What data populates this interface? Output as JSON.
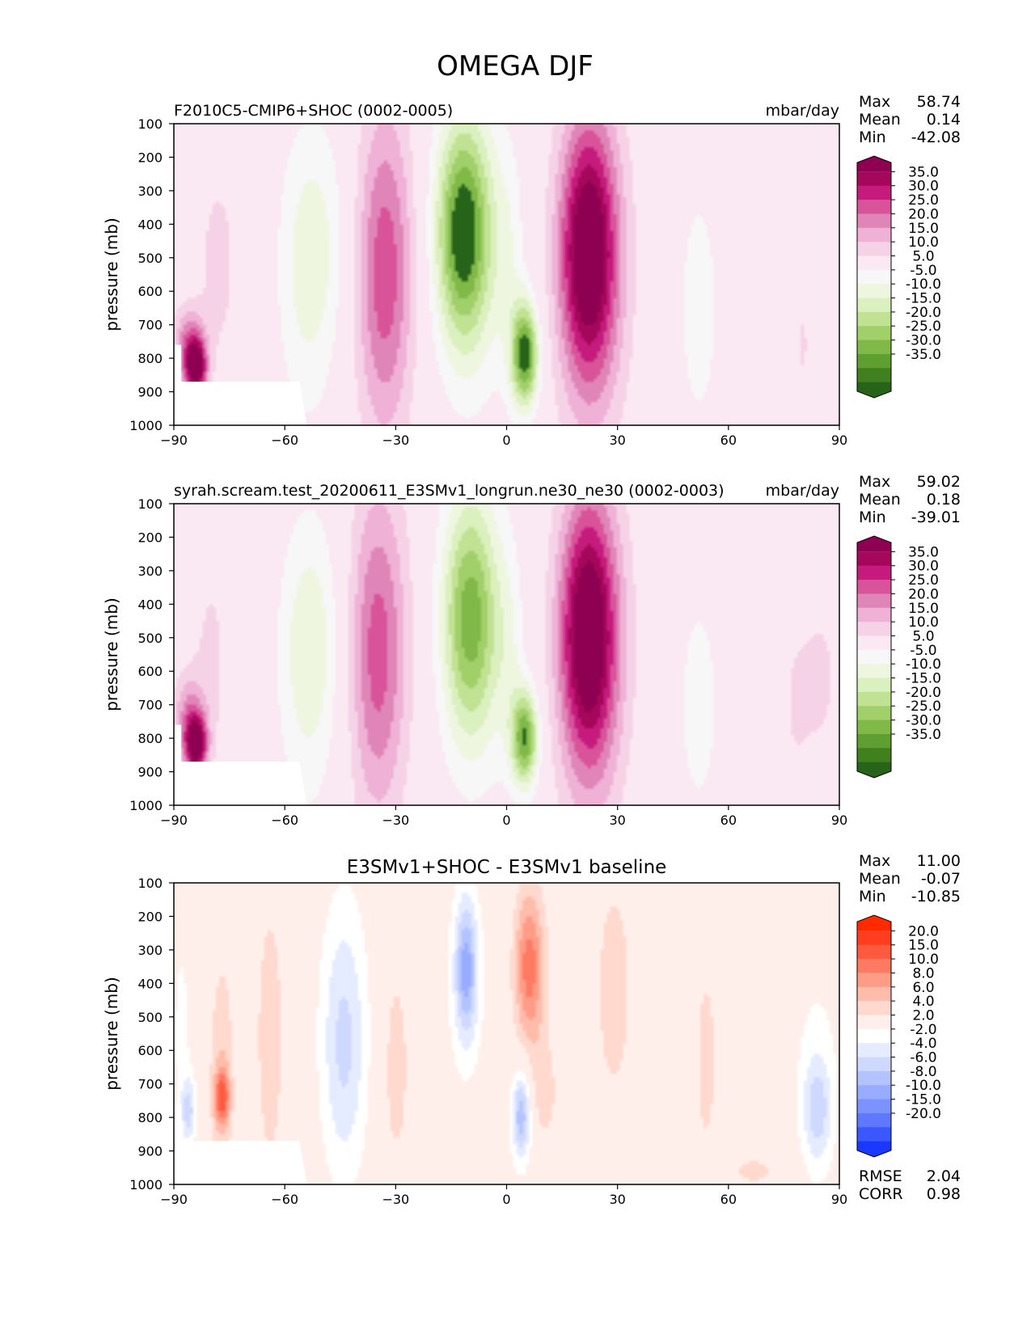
{
  "figure": {
    "title": "OMEGA DJF"
  },
  "chart_data": [
    {
      "type": "heatmap",
      "name": "test",
      "title": "F2010C5-CMIP6+SHOC (0002-0005)",
      "units": "mbar/day",
      "ylabel": "pressure (mb)",
      "xticks": [
        "−90",
        "−60",
        "−30",
        "0",
        "30",
        "60",
        "90"
      ],
      "yticks": [
        "100",
        "200",
        "300",
        "400",
        "500",
        "600",
        "700",
        "800",
        "900",
        "1000"
      ],
      "xlim": [
        -90,
        90
      ],
      "ylim": [
        100,
        1000
      ],
      "stats": {
        "max_label": "Max",
        "max": "58.74",
        "mean_label": "Mean",
        "mean": "0.14",
        "min_label": "Min",
        "min": "-42.08"
      },
      "colorbar": {
        "labels": [
          "35.0",
          "30.0",
          "25.0",
          "20.0",
          "15.0",
          "10.0",
          "5.0",
          "-5.0",
          "-10.0",
          "-15.0",
          "-20.0",
          "-25.0",
          "-30.0",
          "-35.0"
        ],
        "colors": [
          "#8e0152",
          "#a5075b",
          "#c51b7d",
          "#d9539a",
          "#e085b8",
          "#efb1d5",
          "#f6d2e7",
          "#fae9f2",
          "#f7f7f7",
          "#eff6df",
          "#dbf0bf",
          "#c1e293",
          "#a1cf6a",
          "#80b948",
          "#5f9e30",
          "#40801e",
          "#276419"
        ]
      },
      "features": [
        {
          "lat": -84,
          "p": 830,
          "w": 2,
          "h": 60,
          "v": 38
        },
        {
          "lat": -86,
          "p": 760,
          "w": 3,
          "h": 80,
          "v": 18
        },
        {
          "lat": -78,
          "p": 520,
          "w": 4,
          "h": 230,
          "v": 7
        },
        {
          "lat": -54,
          "p": 580,
          "w": 6,
          "h": 320,
          "v": -9
        },
        {
          "lat": -50,
          "p": 420,
          "w": 7,
          "h": 260,
          "v": -6
        },
        {
          "lat": -33,
          "p": 560,
          "w": 5,
          "h": 330,
          "v": 16
        },
        {
          "lat": -33,
          "p": 500,
          "w": 7,
          "h": 380,
          "v": 8
        },
        {
          "lat": -12,
          "p": 420,
          "w": 5,
          "h": 220,
          "v": -28
        },
        {
          "lat": -10,
          "p": 450,
          "w": 7,
          "h": 330,
          "v": -14
        },
        {
          "lat": 5,
          "p": 790,
          "w": 2.6,
          "h": 110,
          "v": -38
        },
        {
          "lat": 1,
          "p": 520,
          "w": 3,
          "h": 260,
          "v": -6
        },
        {
          "lat": 22,
          "p": 480,
          "w": 5,
          "h": 250,
          "v": 30
        },
        {
          "lat": 23,
          "p": 520,
          "w": 7,
          "h": 380,
          "v": 17
        },
        {
          "lat": 52,
          "p": 650,
          "w": 5,
          "h": 340,
          "v": -7
        },
        {
          "lat": 80,
          "p": 760,
          "w": 1.5,
          "h": 100,
          "v": 6
        }
      ]
    },
    {
      "type": "heatmap",
      "name": "reference",
      "title": "syrah.scream.test_20200611_E3SMv1_longrun.ne30_ne30 (0002-0003)",
      "units": "mbar/day",
      "ylabel": "pressure (mb)",
      "xticks": [
        "−90",
        "−60",
        "−30",
        "0",
        "30",
        "60",
        "90"
      ],
      "yticks": [
        "100",
        "200",
        "300",
        "400",
        "500",
        "600",
        "700",
        "800",
        "900",
        "1000"
      ],
      "xlim": [
        -90,
        90
      ],
      "ylim": [
        100,
        1000
      ],
      "stats": {
        "max_label": "Max",
        "max": "59.02",
        "mean_label": "Mean",
        "mean": "0.18",
        "min_label": "Min",
        "min": "-39.01"
      },
      "colorbar": {
        "labels": [
          "35.0",
          "30.0",
          "25.0",
          "20.0",
          "15.0",
          "10.0",
          "5.0",
          "-5.0",
          "-10.0",
          "-15.0",
          "-20.0",
          "-25.0",
          "-30.0",
          "-35.0"
        ],
        "colors": [
          "#8e0152",
          "#a5075b",
          "#c51b7d",
          "#d9539a",
          "#e085b8",
          "#efb1d5",
          "#f6d2e7",
          "#fae9f2",
          "#f7f7f7",
          "#eff6df",
          "#dbf0bf",
          "#c1e293",
          "#a1cf6a",
          "#80b948",
          "#5f9e30",
          "#40801e",
          "#276419"
        ]
      },
      "features": [
        {
          "lat": -84,
          "p": 820,
          "w": 2,
          "h": 60,
          "v": 38
        },
        {
          "lat": -86,
          "p": 740,
          "w": 3,
          "h": 90,
          "v": 16
        },
        {
          "lat": -80,
          "p": 560,
          "w": 4,
          "h": 260,
          "v": 6
        },
        {
          "lat": -54,
          "p": 600,
          "w": 6,
          "h": 330,
          "v": -9
        },
        {
          "lat": -52,
          "p": 480,
          "w": 6,
          "h": 250,
          "v": -6
        },
        {
          "lat": -35,
          "p": 560,
          "w": 5,
          "h": 330,
          "v": 15
        },
        {
          "lat": -34,
          "p": 500,
          "w": 7,
          "h": 380,
          "v": 8
        },
        {
          "lat": -10,
          "p": 440,
          "w": 5,
          "h": 240,
          "v": -22
        },
        {
          "lat": -9,
          "p": 460,
          "w": 7,
          "h": 330,
          "v": -12
        },
        {
          "lat": 5,
          "p": 800,
          "w": 2.6,
          "h": 100,
          "v": -34
        },
        {
          "lat": 1,
          "p": 560,
          "w": 3,
          "h": 240,
          "v": -6
        },
        {
          "lat": 22,
          "p": 490,
          "w": 5,
          "h": 260,
          "v": 30
        },
        {
          "lat": 23,
          "p": 520,
          "w": 7,
          "h": 380,
          "v": 17
        },
        {
          "lat": 52,
          "p": 700,
          "w": 5,
          "h": 300,
          "v": -7
        },
        {
          "lat": 85,
          "p": 620,
          "w": 4,
          "h": 200,
          "v": 6
        },
        {
          "lat": 78,
          "p": 700,
          "w": 3,
          "h": 180,
          "v": 5
        }
      ]
    },
    {
      "type": "heatmap",
      "name": "diff",
      "title": "E3SMv1+SHOC - E3SMv1 baseline",
      "units": "",
      "ylabel": "pressure (mb)",
      "xticks": [
        "−90",
        "−60",
        "−30",
        "0",
        "30",
        "60",
        "90"
      ],
      "yticks": [
        "100",
        "200",
        "300",
        "400",
        "500",
        "600",
        "700",
        "800",
        "900",
        "1000"
      ],
      "xlim": [
        -90,
        90
      ],
      "ylim": [
        100,
        1000
      ],
      "stats": {
        "max_label": "Max",
        "max": "11.00",
        "mean_label": "Mean",
        "mean": "-0.07",
        "min_label": "Min",
        "min": "-10.85"
      },
      "metrics": {
        "rmse_label": "RMSE",
        "rmse": "2.04",
        "corr_label": "CORR",
        "corr": "0.98"
      },
      "colorbar": {
        "labels": [
          "20.0",
          "15.0",
          "10.0",
          "8.0",
          "6.0",
          "4.0",
          "2.0",
          "-2.0",
          "-4.0",
          "-6.0",
          "-8.0",
          "-10.0",
          "-15.0",
          "-20.0"
        ],
        "colors": [
          "#ff2a00",
          "#ff3d1f",
          "#ff5940",
          "#ff7a63",
          "#ff9c87",
          "#ffbcab",
          "#ffd9ce",
          "#ffefea",
          "#ffffff",
          "#e6ecff",
          "#cfd9ff",
          "#b3c3ff",
          "#97abff",
          "#7b92ff",
          "#5f78ff",
          "#3b57ff",
          "#1a38ff"
        ]
      },
      "features": [
        {
          "lat": -77,
          "p": 740,
          "w": 1.4,
          "h": 60,
          "v": 9
        },
        {
          "lat": -77,
          "p": 650,
          "w": 2.5,
          "h": 260,
          "v": 3.5
        },
        {
          "lat": -64,
          "p": 560,
          "w": 3,
          "h": 330,
          "v": 3.2
        },
        {
          "lat": -86,
          "p": 780,
          "w": 1.4,
          "h": 70,
          "v": -6
        },
        {
          "lat": -88,
          "p": 550,
          "w": 2.5,
          "h": 300,
          "v": -2.5
        },
        {
          "lat": -44,
          "p": 580,
          "w": 4,
          "h": 260,
          "v": -4.2
        },
        {
          "lat": -44,
          "p": 550,
          "w": 6,
          "h": 380,
          "v": -2.5
        },
        {
          "lat": -30,
          "p": 650,
          "w": 3,
          "h": 260,
          "v": 3
        },
        {
          "lat": -11,
          "p": 350,
          "w": 2,
          "h": 140,
          "v": -8
        },
        {
          "lat": -11,
          "p": 400,
          "w": 4,
          "h": 230,
          "v": -3.5
        },
        {
          "lat": 6,
          "p": 340,
          "w": 2.5,
          "h": 150,
          "v": 6.5
        },
        {
          "lat": 7,
          "p": 420,
          "w": 4,
          "h": 230,
          "v": 3
        },
        {
          "lat": 10,
          "p": 740,
          "w": 2.5,
          "h": 100,
          "v": 3
        },
        {
          "lat": 4,
          "p": 790,
          "w": 1.6,
          "h": 90,
          "v": -7
        },
        {
          "lat": 4,
          "p": 800,
          "w": 3,
          "h": 130,
          "v": -3
        },
        {
          "lat": 29,
          "p": 420,
          "w": 3.5,
          "h": 240,
          "v": 3.5
        },
        {
          "lat": 54,
          "p": 630,
          "w": 3,
          "h": 300,
          "v": 2.5
        },
        {
          "lat": 84,
          "p": 700,
          "w": 5,
          "h": 260,
          "v": -3
        },
        {
          "lat": 84,
          "p": 780,
          "w": 2.5,
          "h": 100,
          "v": -5
        },
        {
          "lat": 67,
          "p": 960,
          "w": 6,
          "h": 40,
          "v": 2.5
        }
      ]
    }
  ]
}
